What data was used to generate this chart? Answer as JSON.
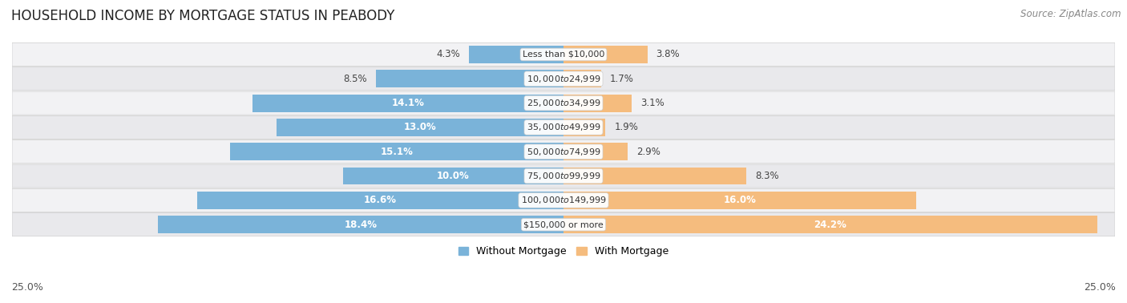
{
  "title": "HOUSEHOLD INCOME BY MORTGAGE STATUS IN PEABODY",
  "source": "Source: ZipAtlas.com",
  "categories": [
    "Less than $10,000",
    "$10,000 to $24,999",
    "$25,000 to $34,999",
    "$35,000 to $49,999",
    "$50,000 to $74,999",
    "$75,000 to $99,999",
    "$100,000 to $149,999",
    "$150,000 or more"
  ],
  "without_mortgage": [
    4.3,
    8.5,
    14.1,
    13.0,
    15.1,
    10.0,
    16.6,
    18.4
  ],
  "with_mortgage": [
    3.8,
    1.7,
    3.1,
    1.9,
    2.9,
    8.3,
    16.0,
    24.2
  ],
  "without_mortgage_color": "#7ab3d9",
  "with_mortgage_color": "#f5bc7e",
  "row_bg_light": "#f0f0f0",
  "row_bg_lighter": "#e8e8ea",
  "axis_label_left": "25.0%",
  "axis_label_right": "25.0%",
  "max_val": 25.0,
  "legend_without": "Without Mortgage",
  "legend_with": "With Mortgage",
  "title_fontsize": 12,
  "source_fontsize": 8.5,
  "bar_label_fontsize": 8.5,
  "category_fontsize": 8
}
